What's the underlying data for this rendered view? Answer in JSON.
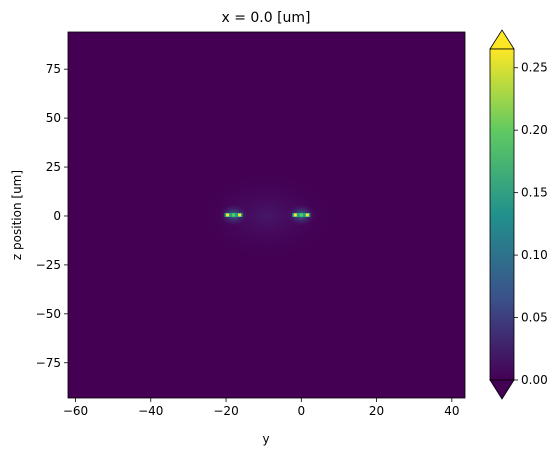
{
  "chart_data": {
    "type": "heatmap",
    "title": "x = 0.0 [um]",
    "xlabel": "y",
    "ylabel": "z position [um]",
    "xlim": [
      -62,
      43.5
    ],
    "ylim": [
      -93,
      94
    ],
    "xticks": [
      -60,
      -40,
      -20,
      0,
      20,
      40
    ],
    "yticks": [
      -75,
      -50,
      -25,
      0,
      25,
      50,
      75
    ],
    "xtick_labels": [
      "−60",
      "−40",
      "−20",
      "0",
      "20",
      "40"
    ],
    "ytick_labels": [
      "−75",
      "−50",
      "−25",
      "0",
      "25",
      "50",
      "75"
    ],
    "colorbar": {
      "min": 0.0,
      "max": 0.265,
      "extend": "both",
      "colormap": "viridis",
      "ticks": [
        0.0,
        0.05,
        0.1,
        0.15,
        0.2,
        0.25
      ],
      "tick_labels": [
        "0.00",
        "0.05",
        "0.10",
        "0.15",
        "0.20",
        "0.25"
      ]
    },
    "field_sources": [
      {
        "y": -18,
        "z": 0.5,
        "peak": 0.265
      },
      {
        "y": 0,
        "z": 0.5,
        "peak": 0.265
      }
    ],
    "background_value": 0.0
  },
  "colors": {
    "viridis_0": "#440154",
    "viridis_1": "#3b528b",
    "viridis_2": "#21918c",
    "viridis_3": "#5ec962",
    "viridis_4": "#fde725"
  }
}
